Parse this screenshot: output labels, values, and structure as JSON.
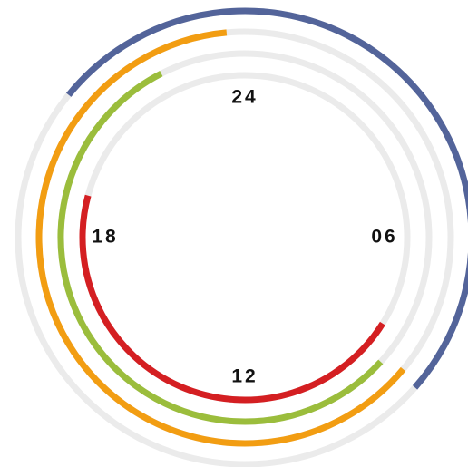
{
  "chart_data": {
    "type": "radial_arc",
    "xlim": [
      0,
      24
    ],
    "xticks": [
      24,
      {
        "value": 6,
        "label": "06"
      },
      12,
      18
    ],
    "track_color": "#ebebeb",
    "series": [
      {
        "color": "#53649a",
        "values": [
          20.6,
          8.76
        ]
      },
      {
        "color": "#f29d12",
        "values": [
          8.65,
          23.66
        ]
      },
      {
        "color": "#9bbd3c",
        "values": [
          8.83,
          22.2
        ]
      },
      {
        "color": "#d41f22",
        "values": [
          8.13,
          19.0
        ]
      }
    ]
  }
}
